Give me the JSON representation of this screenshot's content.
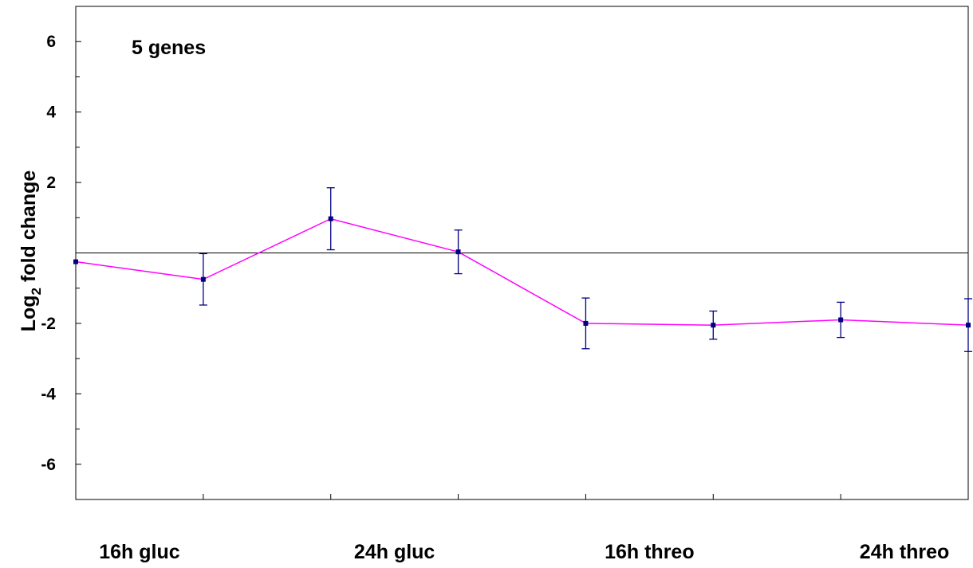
{
  "chart_data": {
    "type": "line",
    "annotation": "5 genes",
    "ylabel": {
      "prefix": "Log",
      "subscript": "2",
      "suffix": " fold change"
    },
    "xlabel": "",
    "ylim": [
      -7,
      7
    ],
    "yticks_labeled": [
      6,
      4,
      2,
      -2,
      -4,
      -6
    ],
    "yticks_minor": [
      5,
      3,
      1,
      -1,
      -3,
      -5
    ],
    "xlim": [
      0,
      7
    ],
    "categories": [
      {
        "label": "16h gluc",
        "x": 0.5
      },
      {
        "label": "24h gluc",
        "x": 2.5
      },
      {
        "label": "16h threo",
        "x": 4.5
      },
      {
        "label": "24h threo",
        "x": 6.5
      }
    ],
    "reference_line_y": 0,
    "series": [
      {
        "color": "#ff00ff",
        "marker_color": "#000080",
        "points": [
          {
            "x": 0,
            "y": -0.25,
            "err": null
          },
          {
            "x": 1,
            "y": -0.75,
            "err": 0.73
          },
          {
            "x": 2,
            "y": 0.97,
            "err": 0.88
          },
          {
            "x": 3,
            "y": 0.03,
            "err": 0.62
          },
          {
            "x": 4,
            "y": -2.0,
            "err": 0.72
          },
          {
            "x": 5,
            "y": -2.05,
            "err": 0.4
          },
          {
            "x": 6,
            "y": -1.9,
            "err": 0.5
          },
          {
            "x": 7,
            "y": -2.05,
            "err": 0.75
          }
        ]
      }
    ],
    "grid": false
  }
}
